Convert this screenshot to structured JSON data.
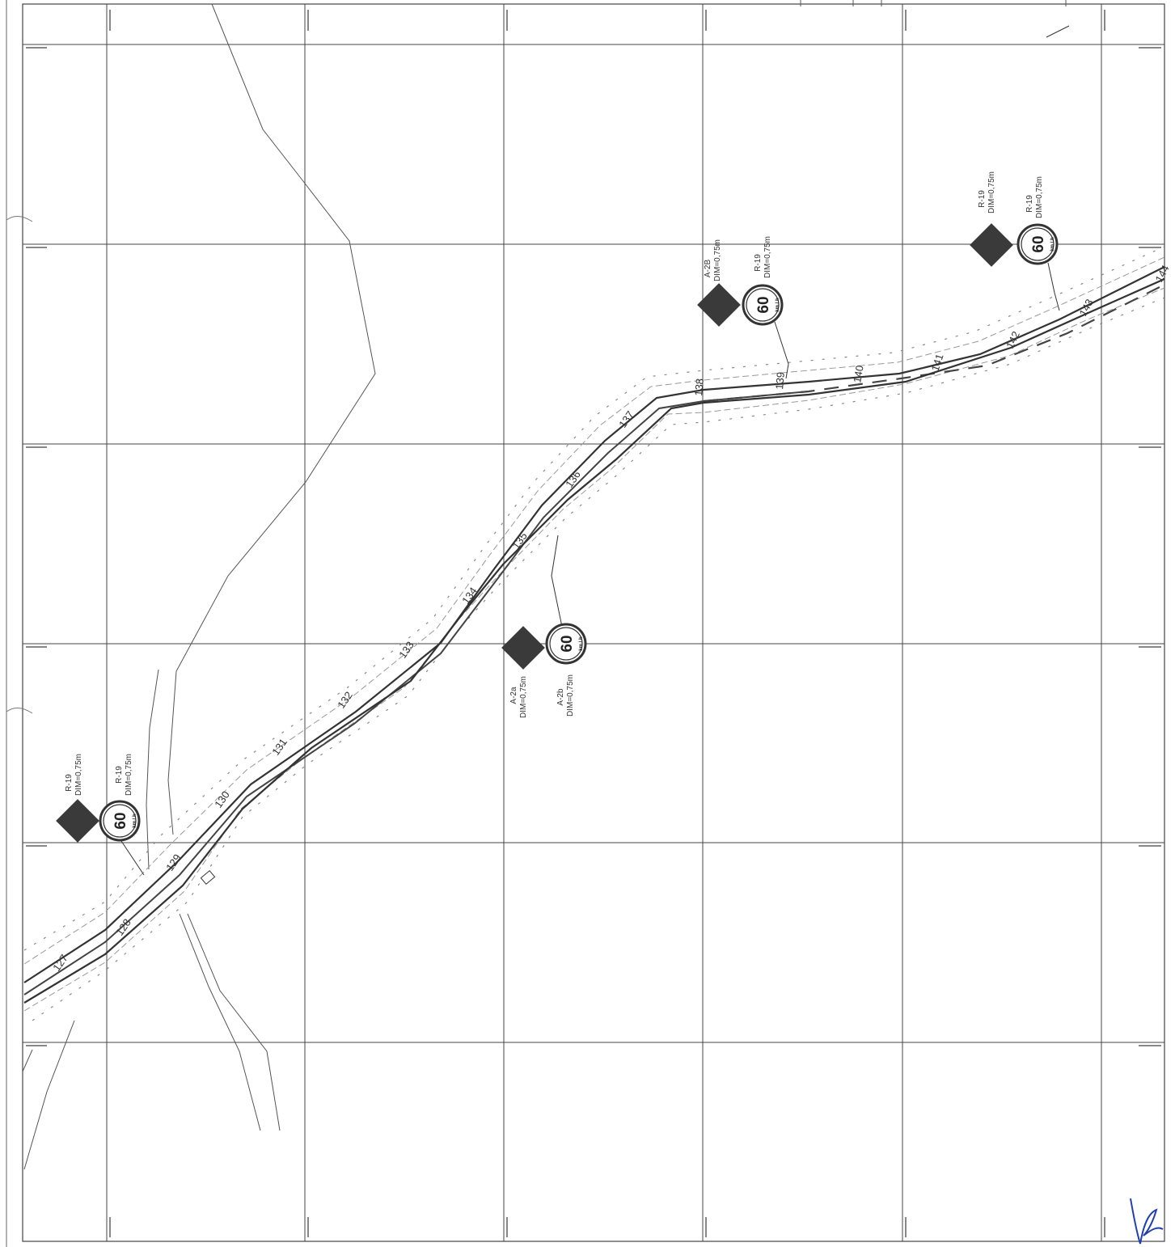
{
  "sheet": {
    "colors": {
      "line": "#3a3a3a",
      "sign_fill": "#3a3a3a",
      "grid": "#444444",
      "road_edge": "#555555",
      "fence": "#666666"
    }
  },
  "stations": [
    "127",
    "128",
    "129",
    "130",
    "131",
    "132",
    "133",
    "134",
    "135",
    "136",
    "137",
    "138",
    "139",
    "140",
    "141",
    "142",
    "143",
    "144"
  ],
  "signs": [
    {
      "warning_code": "R-19",
      "warning_dim": "DIM=0,75m",
      "speed_code": "R-19",
      "speed_dim": "DIM=0,75m",
      "speed_value": "60",
      "speed_unit": "km / h"
    },
    {
      "warning_code": "A-2a",
      "warning_dim": "DIM=0,75m",
      "speed_code": "A-2b",
      "speed_dim": "DIM=0,75m",
      "speed_value": "60",
      "speed_unit": "km / h"
    },
    {
      "warning_code": "A-2B",
      "warning_dim": "DIM=0,75m",
      "speed_code": "R-19",
      "speed_dim": "DIM=0,75m",
      "speed_value": "60",
      "speed_unit": "km / h"
    },
    {
      "warning_code": "R-19",
      "warning_dim": "DIM=0,75m",
      "speed_code": "R-19",
      "speed_dim": "DIM=0,75m",
      "speed_value": "60",
      "speed_unit": "km / h"
    }
  ],
  "signature": {
    "icon": "handwritten-signature"
  }
}
